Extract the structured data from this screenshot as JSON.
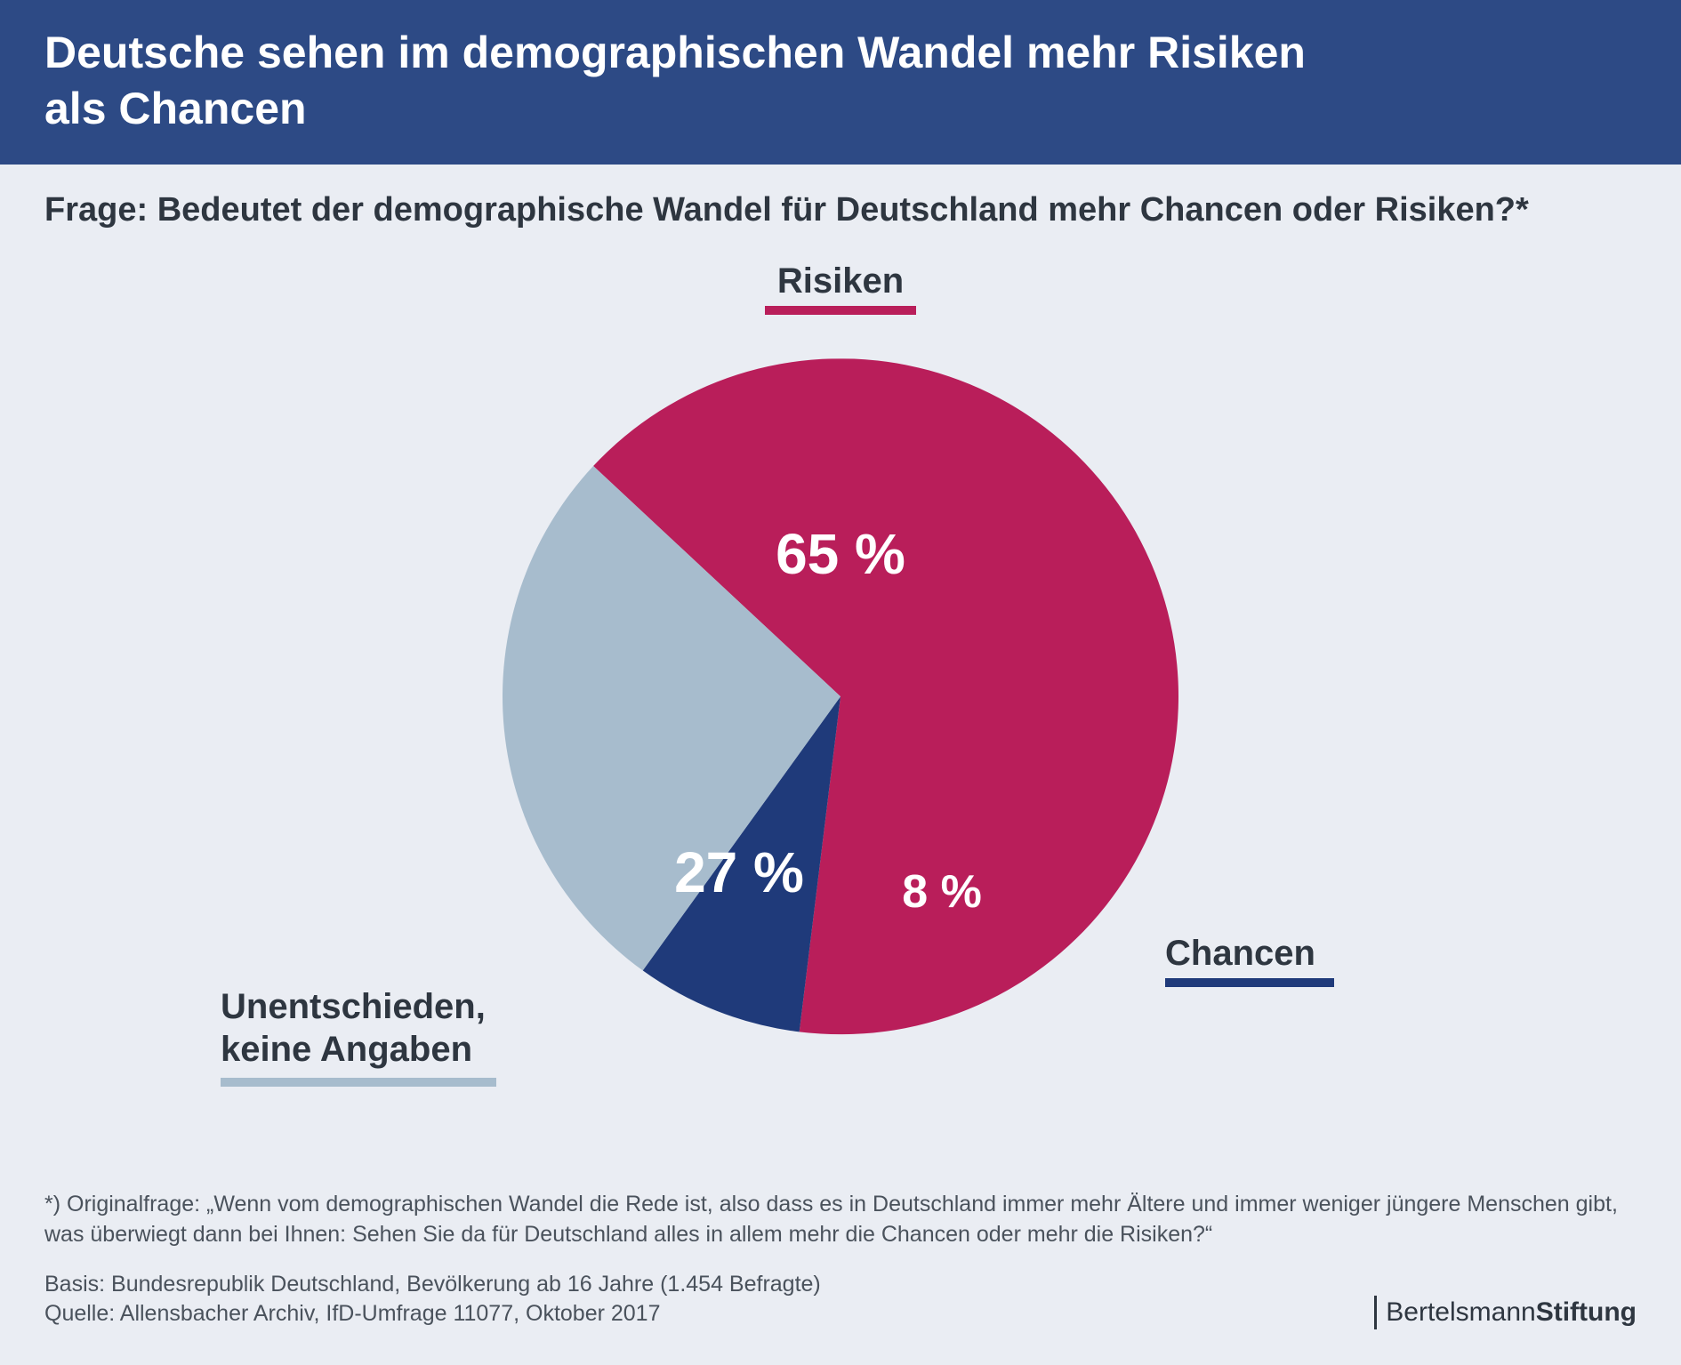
{
  "header": {
    "title_line1": "Deutsche sehen im demographischen Wandel mehr Risiken",
    "title_line2": "als Chancen",
    "bg_color": "#2d4a85",
    "text_color": "#ffffff"
  },
  "question": "Frage: Bedeutet der demographische Wandel für Deutschland mehr Chancen oder Risiken?*",
  "pie": {
    "type": "pie",
    "background_color": "#eaedf3",
    "radius": 380,
    "start_angle_deg": -47,
    "slices": [
      {
        "label": "Risiken",
        "value": 65,
        "display": "65 %",
        "color": "#b91e5a"
      },
      {
        "label": "Chancen",
        "value": 8,
        "display": "8 %",
        "color": "#1f3a7a"
      },
      {
        "label": "Unentschieden,\nkeine Angaben",
        "value": 27,
        "display": "27 %",
        "color": "#a7bccd"
      }
    ],
    "value_font_size": 64,
    "value_font_size_small": 52,
    "value_color": "#ffffff",
    "category_font_size": 40,
    "category_color": "#2e3640",
    "underline_thickness": 10
  },
  "footnotes": {
    "original": "*) Originalfrage: „Wenn vom demographischen Wandel die Rede ist, also dass es in Deutschland immer mehr Ältere und immer weniger jüngere Menschen gibt, was überwiegt dann bei Ihnen: Sehen Sie da für Deutschland alles in allem mehr die Chancen oder mehr die Risiken?“",
    "basis": "Basis: Bundesrepublik Deutschland, Bevölkerung ab 16 Jahre (1.454 Befragte)",
    "source": "Quelle: Allensbacher Archiv, IfD-Umfrage 11077, Oktober 2017"
  },
  "brand": {
    "part1": "Bertelsmann",
    "part2": "Stiftung"
  }
}
